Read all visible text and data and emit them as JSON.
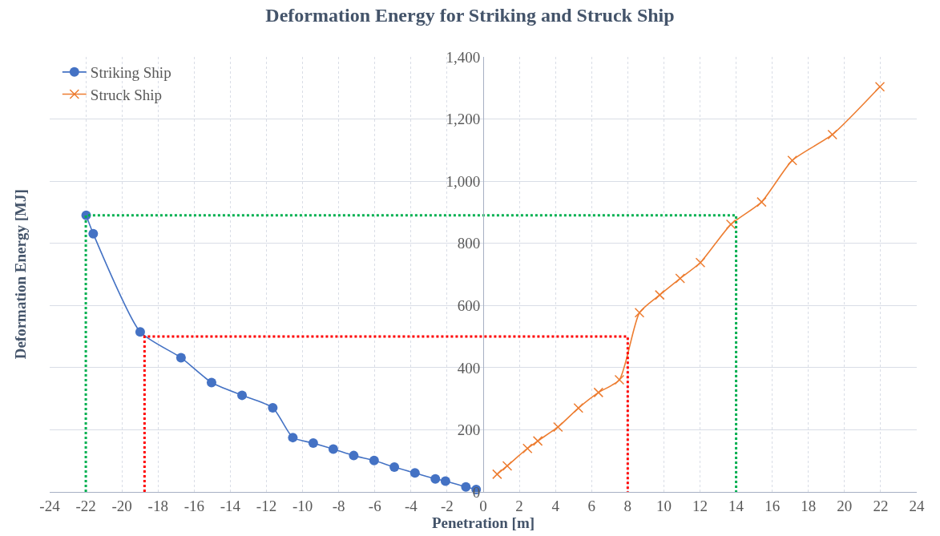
{
  "chart_data": {
    "type": "line",
    "title": "Deformation Energy for Striking and Struck Ship",
    "xlabel": "Penetration [m]",
    "ylabel": "Deformation Energy [MJ]",
    "xlim": [
      -24,
      24
    ],
    "xticks": [
      -24,
      -22,
      -20,
      -18,
      -16,
      -14,
      -12,
      -10,
      -8,
      -6,
      -4,
      -2,
      0,
      2,
      4,
      6,
      8,
      10,
      12,
      14,
      16,
      18,
      20,
      22,
      24
    ],
    "ylim": [
      0,
      1400
    ],
    "yticks": [
      0,
      200,
      400,
      600,
      800,
      {
        "value": 1000,
        "label": "1,000"
      },
      {
        "value": 1200,
        "label": "1,200"
      },
      {
        "value": 1400,
        "label": "1,400"
      }
    ],
    "grid": true,
    "legend": "top left",
    "series": [
      {
        "name": "Striking Ship",
        "color": "#4472c4",
        "marker": "circle",
        "line_style": "solid",
        "x": [
          -21.98,
          -21.59,
          -18.99,
          -16.73,
          -15.04,
          -13.35,
          -11.65,
          -10.54,
          -9.41,
          -8.3,
          -7.17,
          -6.04,
          -4.92,
          -3.78,
          -2.65,
          -2.09,
          -0.96,
          -0.39
        ],
        "values": [
          890,
          831,
          515,
          432,
          352,
          311,
          271,
          175,
          157,
          138,
          117,
          101,
          80,
          61,
          42,
          35,
          16,
          8
        ]
      },
      {
        "name": "Struck Ship",
        "color": "#ed7d31",
        "marker": "cross",
        "line_style": "solid",
        "x": [
          0.77,
          1.33,
          2.45,
          3.02,
          4.14,
          5.27,
          6.38,
          7.54,
          8.65,
          9.77,
          10.9,
          12.02,
          13.71,
          15.41,
          17.11,
          19.33,
          21.96
        ],
        "values": [
          57,
          84,
          140,
          164,
          209,
          270,
          320,
          361,
          577,
          634,
          687,
          738,
          861,
          933,
          1067,
          1150,
          1304
        ]
      },
      {
        "color": "#00b050",
        "marker": "none",
        "line_style": "dotted",
        "x": [
          -22,
          -22,
          14,
          14
        ],
        "values": [
          0,
          890,
          890,
          0
        ]
      },
      {
        "color": "#ff0000",
        "marker": "none",
        "line_style": "dotted",
        "x": [
          -18.75,
          -18.75,
          8,
          8
        ],
        "values": [
          0,
          500,
          500,
          0
        ]
      }
    ]
  }
}
